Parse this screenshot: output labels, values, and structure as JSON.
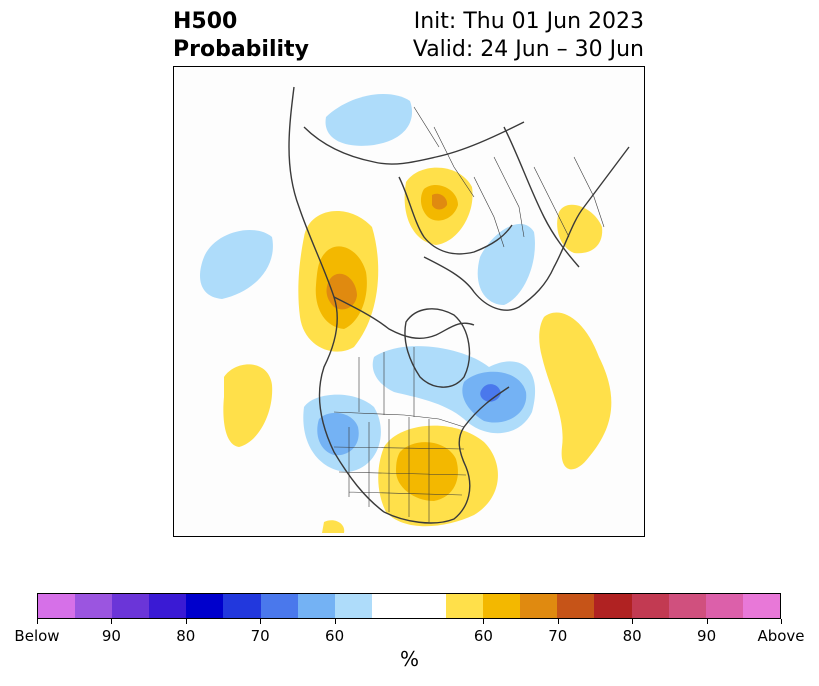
{
  "title": {
    "line1": "H500",
    "line2": "Probability",
    "init": "Init: Thu 01 Jun 2023",
    "valid": "Valid: 24 Jun – 30 Jun"
  },
  "colorbar": {
    "units": "%",
    "colors": [
      "#d670e8",
      "#9b55e0",
      "#6b35d8",
      "#3a1ad4",
      "#0000cc",
      "#2238dd",
      "#4a78ec",
      "#74b2f4",
      "#aedcfa",
      "#ffffff",
      "#ffe04a",
      "#f3b800",
      "#e08a10",
      "#c65418",
      "#b02222",
      "#c23a52",
      "#d0507e",
      "#dc60aa",
      "#e878d8"
    ],
    "widths": [
      1,
      1,
      1,
      1,
      1,
      1,
      1,
      1,
      1,
      2,
      1,
      1,
      1,
      1,
      1,
      1,
      1,
      1,
      1
    ],
    "tick_labels": [
      "Below",
      "90",
      "80",
      "70",
      "60",
      "60",
      "70",
      "80",
      "90",
      "Above"
    ],
    "below_colors": {
      "60": "#aedcfa",
      "70": "#74b2f4",
      "80": "#4a78ec"
    },
    "above_colors": {
      "60": "#ffe04a",
      "70": "#f3b800",
      "80": "#e08a10"
    }
  },
  "map": {
    "border_color": "#3a3a3a",
    "land_color": "#ffffff",
    "ocean_color": "#fdfdfd"
  }
}
